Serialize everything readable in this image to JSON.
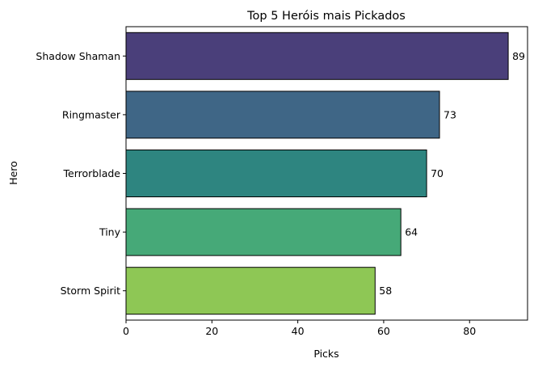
{
  "chart_data": {
    "type": "bar",
    "orientation": "horizontal",
    "title": "Top 5 Heróis mais Pickados",
    "xlabel": "Picks",
    "ylabel": "Hero",
    "categories": [
      "Shadow Shaman",
      "Ringmaster",
      "Terrorblade",
      "Tiny",
      "Storm Spirit"
    ],
    "values": [
      89,
      73,
      70,
      64,
      58
    ],
    "value_labels": [
      "89",
      "73",
      "70",
      "64",
      "58"
    ],
    "colors": [
      "#4a3f7a",
      "#3f6686",
      "#2e8580",
      "#46a978",
      "#8ec755"
    ],
    "xlim": [
      0,
      93.5
    ],
    "xticks": [
      0,
      20,
      40,
      60,
      80
    ],
    "xtick_labels": [
      "0",
      "20",
      "40",
      "60",
      "80"
    ],
    "grid": false,
    "legend": "none"
  }
}
